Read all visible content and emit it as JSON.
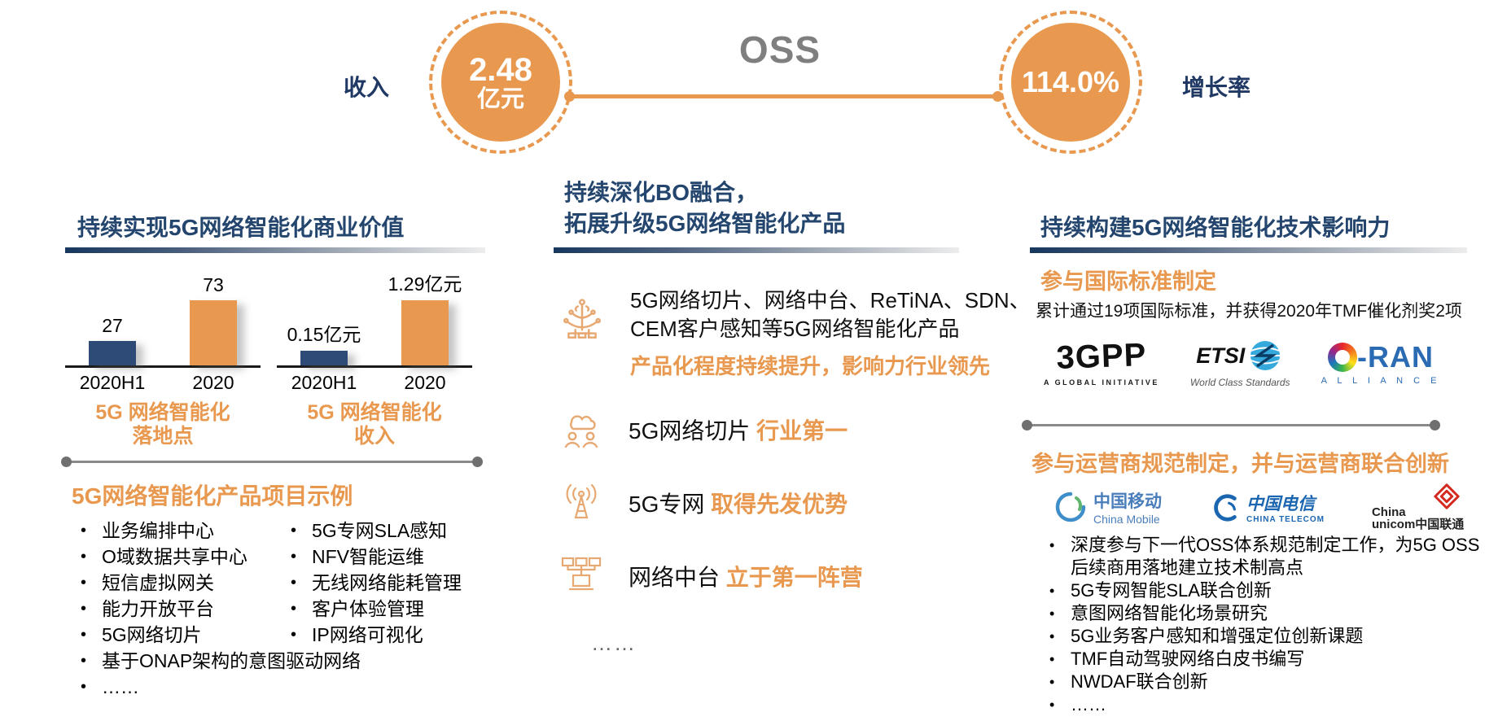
{
  "colors": {
    "accent_orange": "#E8994F",
    "navy_label": "#1F3864",
    "heading_blue": "#24466E",
    "bar_navy": "#2E4B77",
    "oss_gray": "#7F7F7F"
  },
  "header": {
    "title": "OSS",
    "revenue": {
      "label": "收入",
      "value": "2.48",
      "unit": "亿元"
    },
    "growth": {
      "label": "增长率",
      "value": "114.0%"
    }
  },
  "left_panel": {
    "heading": "持续实现5G网络智能化商业价值",
    "examples": {
      "heading": "5G网络智能化产品项目示例",
      "col1": [
        "业务编排中心",
        "O域数据共享中心",
        "短信虚拟网关",
        "能力开放平台",
        "5G网络切片",
        "基于ONAP架构的意图驱动网络",
        "……"
      ],
      "col2": [
        "5G专网SLA感知",
        "NFV智能运维",
        "无线网络能耗管理",
        "客户体验管理",
        "IP网络可视化"
      ]
    }
  },
  "chart_data": [
    {
      "type": "bar",
      "title": "5G 网络智能化落地点",
      "caption_line1": "5G 网络智能化",
      "caption_line2": "落地点",
      "categories": [
        "2020H1",
        "2020"
      ],
      "values": [
        27,
        73
      ],
      "value_labels": [
        "27",
        "73"
      ],
      "bar_colors": [
        "#2E4B77",
        "#E8994F"
      ],
      "ylim": [
        0,
        80
      ],
      "grid": false,
      "legend": "none"
    },
    {
      "type": "bar",
      "title": "5G 网络智能化收入",
      "caption_line1": "5G 网络智能化",
      "caption_line2": "收入",
      "categories": [
        "2020H1",
        "2020"
      ],
      "values": [
        0.15,
        1.29
      ],
      "value_labels": [
        "0.15亿元",
        "1.29亿元"
      ],
      "bar_colors": [
        "#2E4B77",
        "#E8994F"
      ],
      "unit": "亿元",
      "ylim": [
        0,
        1.4
      ],
      "grid": false,
      "legend": "none"
    }
  ],
  "middle_panel": {
    "heading_line1": "持续深化BO融合，",
    "heading_line2": "拓展升级5G网络智能化产品",
    "item1": {
      "icon": "platform-tower-icon",
      "line1": "5G网络切片、网络中台、ReTiNA、SDN、",
      "line2": "CEM客户感知等5G网络智能化产品",
      "highlight": "产品化程度持续提升，影响力行业领先"
    },
    "item2": {
      "icon": "cloud-users-icon",
      "text": "5G网络切片",
      "highlight": "行业第一"
    },
    "item3": {
      "icon": "antenna-icon",
      "text": "5G专网",
      "highlight": "取得先发优势"
    },
    "item4": {
      "icon": "network-screens-icon",
      "text": "网络中台",
      "highlight": "立于第一阵营"
    },
    "ellipsis": "……"
  },
  "right_panel": {
    "heading": "持续构建5G网络智能化技术影响力",
    "standards": {
      "heading": "参与国际标准制定",
      "description": "累计通过19项国际标准，并获得2020年TMF催化剂奖2项",
      "logos": [
        {
          "name": "3GPP",
          "text": "3GPP",
          "caption": "A GLOBAL INITIATIVE"
        },
        {
          "name": "ETSI",
          "text": "ETSI",
          "caption": "World Class Standards"
        },
        {
          "name": "O-RAN ALLIANCE",
          "text": "-RAN",
          "caption": "A L L I A N C E"
        }
      ]
    },
    "operators": {
      "heading": "参与运营商规范制定，并与运营商联合创新",
      "logos": [
        {
          "name": "China Mobile",
          "zh": "中国移动",
          "en": "China Mobile"
        },
        {
          "name": "China Telecom",
          "zh": "中国电信",
          "en": "CHINA TELECOM"
        },
        {
          "name": "China Unicom",
          "line1": "China",
          "line2": "unicom中国联通"
        }
      ]
    },
    "bullets": [
      "深度参与下一代OSS体系规范制定工作，为5G OSS后续商用落地建立技术制高点",
      "5G专网智能SLA联合创新",
      "意图网络智能化场景研究",
      "5G业务客户感知和增强定位创新课题",
      "TMF自动驾驶网络白皮书编写",
      "NWDAF联合创新",
      "……"
    ]
  }
}
